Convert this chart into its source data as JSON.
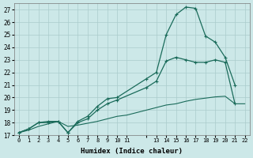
{
  "xlabel": "Humidex (Indice chaleur)",
  "bg_color": "#cce8e8",
  "grid_color": "#aacccc",
  "line_color": "#1a6b5a",
  "xlim": [
    -0.5,
    23.5
  ],
  "ylim": [
    17,
    27.5
  ],
  "yticks": [
    17,
    18,
    19,
    20,
    21,
    22,
    23,
    24,
    25,
    26,
    27
  ],
  "line1_x": [
    0,
    1,
    2,
    3,
    4,
    5,
    6,
    7,
    8,
    9,
    10,
    13,
    14,
    15,
    16,
    17,
    18,
    19,
    20,
    21,
    22
  ],
  "line1_y": [
    17.2,
    17.5,
    18.0,
    18.0,
    18.1,
    17.2,
    18.1,
    18.5,
    19.3,
    19.9,
    20.0,
    21.5,
    22.0,
    25.0,
    26.6,
    27.2,
    27.1,
    24.9,
    24.4,
    23.2,
    21.0
  ],
  "line2_x": [
    0,
    1,
    2,
    3,
    4,
    5,
    6,
    7,
    8,
    9,
    10,
    13,
    14,
    15,
    16,
    17,
    18,
    19,
    20,
    21,
    22
  ],
  "line2_y": [
    17.2,
    17.5,
    18.0,
    18.1,
    18.1,
    17.2,
    18.0,
    18.3,
    19.0,
    19.5,
    19.8,
    20.8,
    21.3,
    22.9,
    23.2,
    23.0,
    22.8,
    22.8,
    23.0,
    22.8,
    19.5
  ],
  "line3_x": [
    0,
    1,
    2,
    3,
    4,
    5,
    6,
    7,
    8,
    9,
    10,
    11,
    13,
    14,
    15,
    16,
    17,
    18,
    19,
    20,
    21,
    22,
    23
  ],
  "line3_y": [
    17.2,
    17.4,
    17.7,
    17.9,
    18.1,
    17.7,
    17.8,
    17.95,
    18.1,
    18.3,
    18.5,
    18.6,
    19.0,
    19.2,
    19.4,
    19.5,
    19.7,
    19.85,
    19.95,
    20.05,
    20.1,
    19.5,
    19.5
  ]
}
